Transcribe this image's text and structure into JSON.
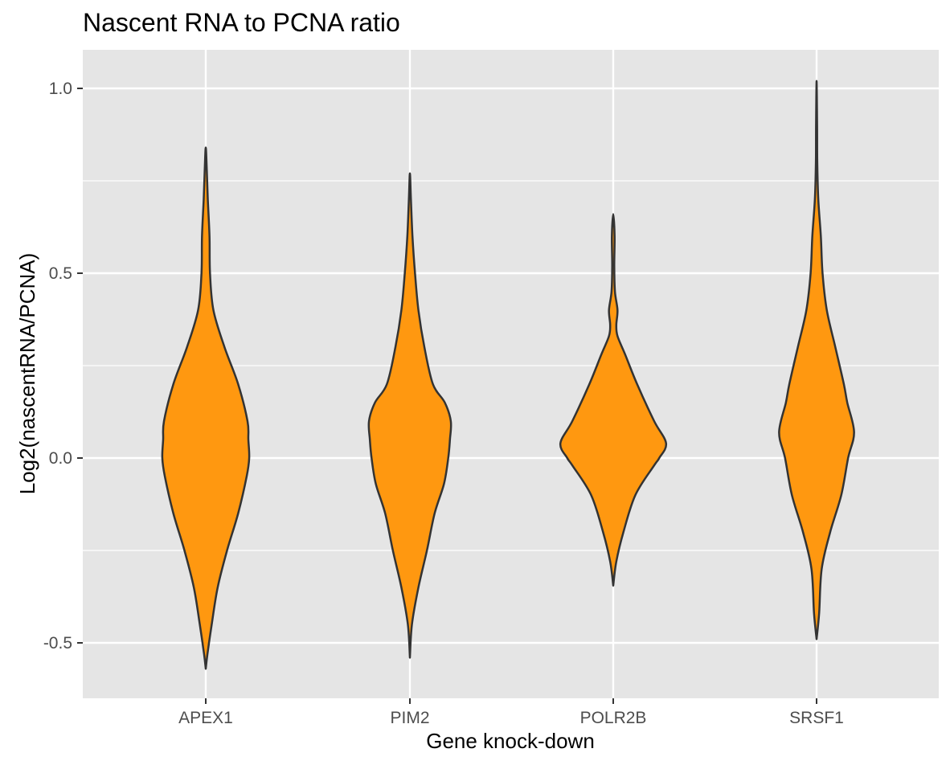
{
  "chart_data": {
    "type": "violin",
    "title": "Nascent RNA to PCNA ratio",
    "xlabel": "Gene knock-down",
    "ylabel": "Log2(nascentRNA/PCNA)",
    "categories": [
      "APEX1",
      "PIM2",
      "POLR2B",
      "SRSF1"
    ],
    "ylim": [
      -0.64,
      1.1
    ],
    "yticks": [
      {
        "value": -0.5,
        "label": "-0.5"
      },
      {
        "value": 0.0,
        "label": "0.0"
      },
      {
        "value": 0.5,
        "label": "0.5"
      },
      {
        "value": 1.0,
        "label": "1.0"
      }
    ],
    "y_minor_ticks": [
      -0.25,
      0.25,
      0.75
    ],
    "grid": true,
    "legend": "none",
    "colors": {
      "fill": "#FF9810",
      "outline": "#333333",
      "panel": "#E5E5E5",
      "grid": "#FFFFFF"
    },
    "series": [
      {
        "category": "APEX1",
        "range": [
          -0.57,
          0.84
        ],
        "density_profile": [
          [
            -0.57,
            0.0
          ],
          [
            -0.53,
            0.01
          ],
          [
            -0.45,
            0.035
          ],
          [
            -0.35,
            0.07
          ],
          [
            -0.25,
            0.125
          ],
          [
            -0.15,
            0.19
          ],
          [
            -0.05,
            0.24
          ],
          [
            0.0,
            0.255
          ],
          [
            0.05,
            0.25
          ],
          [
            0.1,
            0.245
          ],
          [
            0.2,
            0.19
          ],
          [
            0.3,
            0.11
          ],
          [
            0.4,
            0.045
          ],
          [
            0.5,
            0.025
          ],
          [
            0.6,
            0.022
          ],
          [
            0.7,
            0.012
          ],
          [
            0.78,
            0.006
          ],
          [
            0.84,
            0.0
          ]
        ]
      },
      {
        "category": "PIM2",
        "range": [
          -0.54,
          0.77
        ],
        "density_profile": [
          [
            -0.54,
            0.0
          ],
          [
            -0.45,
            0.012
          ],
          [
            -0.35,
            0.05
          ],
          [
            -0.25,
            0.1
          ],
          [
            -0.15,
            0.145
          ],
          [
            -0.07,
            0.2
          ],
          [
            0.0,
            0.225
          ],
          [
            0.05,
            0.235
          ],
          [
            0.1,
            0.24
          ],
          [
            0.15,
            0.205
          ],
          [
            0.2,
            0.135
          ],
          [
            0.3,
            0.085
          ],
          [
            0.4,
            0.05
          ],
          [
            0.5,
            0.03
          ],
          [
            0.6,
            0.015
          ],
          [
            0.7,
            0.006
          ],
          [
            0.77,
            0.0
          ]
        ]
      },
      {
        "category": "POLR2B",
        "range": [
          -0.345,
          0.66
        ],
        "density_profile": [
          [
            -0.345,
            0.0
          ],
          [
            -0.28,
            0.018
          ],
          [
            -0.2,
            0.06
          ],
          [
            -0.1,
            0.13
          ],
          [
            -0.02,
            0.24
          ],
          [
            0.0,
            0.27
          ],
          [
            0.04,
            0.31
          ],
          [
            0.1,
            0.24
          ],
          [
            0.2,
            0.14
          ],
          [
            0.28,
            0.07
          ],
          [
            0.33,
            0.025
          ],
          [
            0.36,
            0.018
          ],
          [
            0.4,
            0.025
          ],
          [
            0.45,
            0.01
          ],
          [
            0.52,
            0.006
          ],
          [
            0.6,
            0.008
          ],
          [
            0.66,
            0.0
          ]
        ]
      },
      {
        "category": "SRSF1",
        "range": [
          -0.49,
          1.02
        ],
        "density_profile": [
          [
            -0.49,
            0.0
          ],
          [
            -0.42,
            0.015
          ],
          [
            -0.3,
            0.03
          ],
          [
            -0.2,
            0.08
          ],
          [
            -0.1,
            0.145
          ],
          [
            0.0,
            0.185
          ],
          [
            0.07,
            0.22
          ],
          [
            0.15,
            0.18
          ],
          [
            0.2,
            0.16
          ],
          [
            0.3,
            0.11
          ],
          [
            0.4,
            0.06
          ],
          [
            0.5,
            0.035
          ],
          [
            0.6,
            0.025
          ],
          [
            0.7,
            0.01
          ],
          [
            0.8,
            0.004
          ],
          [
            0.9,
            0.003
          ],
          [
            1.02,
            0.0
          ]
        ]
      }
    ]
  }
}
